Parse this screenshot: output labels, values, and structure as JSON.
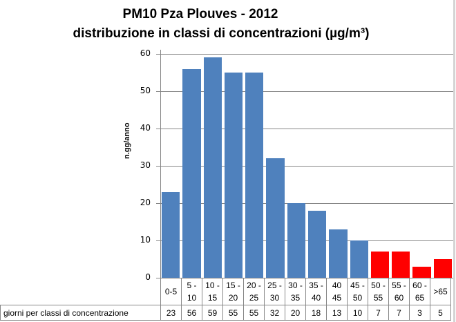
{
  "chart_data": {
    "type": "bar",
    "title": "PM10 Pza Plouves - 2012",
    "subtitle": "distribuzione  in classi di concentrazioni (µg/m³)",
    "xlabel": "",
    "ylabel": "n.gg/anno",
    "ylim": [
      0,
      60
    ],
    "yticks": [
      0,
      10,
      20,
      30,
      40,
      50,
      60
    ],
    "grid": true,
    "legend": null,
    "categories": [
      "0-5",
      "5 - 10",
      "10 - 15",
      "15 - 20",
      "20 - 25",
      "25 - 30",
      "30 - 35",
      "35 - 40",
      "40 45",
      "45 - 50",
      "50 - 55",
      "55 - 60",
      "60 - 65",
      ">65"
    ],
    "series": [
      {
        "name": "giorni per classi di concentrazione",
        "values": [
          23,
          56,
          59,
          55,
          55,
          32,
          20,
          18,
          13,
          10,
          7,
          7,
          3,
          5
        ]
      }
    ],
    "bar_colors": [
      "#4f81bd",
      "#4f81bd",
      "#4f81bd",
      "#4f81bd",
      "#4f81bd",
      "#4f81bd",
      "#4f81bd",
      "#4f81bd",
      "#4f81bd",
      "#4f81bd",
      "#ff0000",
      "#ff0000",
      "#ff0000",
      "#ff0000"
    ],
    "data_table": {
      "row_label": "giorni per classi di concentrazione",
      "cat_lines": [
        [
          "0-5",
          ""
        ],
        [
          "5 -",
          "10"
        ],
        [
          "10 -",
          "15"
        ],
        [
          "15 -",
          "20"
        ],
        [
          "20 -",
          "25"
        ],
        [
          "25 -",
          "30"
        ],
        [
          "30 -",
          "35"
        ],
        [
          "35 -",
          "40"
        ],
        [
          "40",
          "45"
        ],
        [
          "45 -",
          "50"
        ],
        [
          "50 -",
          "55"
        ],
        [
          "55 -",
          "60"
        ],
        [
          "60 -",
          "65"
        ],
        [
          ">65",
          ""
        ]
      ]
    }
  },
  "colors": {
    "blue": "#4f81bd",
    "red": "#ff0000",
    "grid": "#868686"
  }
}
